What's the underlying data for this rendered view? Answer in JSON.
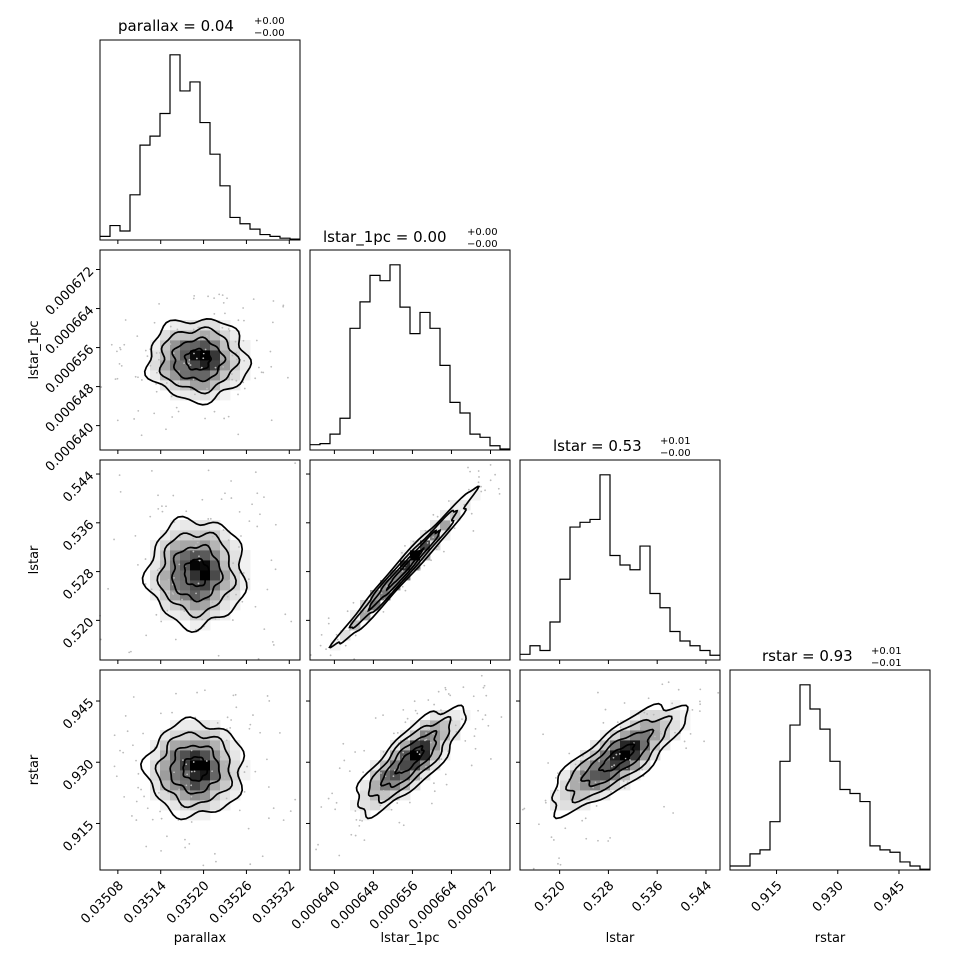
{
  "chart_data": {
    "type": "corner",
    "parameters": [
      "parallax",
      "lstar_1pc",
      "lstar",
      "rstar"
    ],
    "titles": [
      {
        "parameter": "parallax",
        "main": "parallax = 0.04",
        "upper": "+0.00",
        "lower": "−0.00"
      },
      {
        "parameter": "lstar_1pc",
        "main": "lstar_1pc = 0.00",
        "upper": "+0.00",
        "lower": "−0.00"
      },
      {
        "parameter": "lstar",
        "main": "lstar = 0.53",
        "upper": "+0.01",
        "lower": "−0.00"
      },
      {
        "parameter": "rstar",
        "main": "rstar = 0.93",
        "upper": "+0.01",
        "lower": "−0.01"
      }
    ],
    "axis_labels": {
      "x": [
        "parallax",
        "lstar_1pc",
        "lstar",
        "rstar"
      ],
      "y": [
        "lstar_1pc",
        "lstar",
        "rstar"
      ]
    },
    "ranges": {
      "parallax": [
        0.035055,
        0.035335
      ],
      "lstar_1pc": [
        0.000635,
        0.000676
      ],
      "lstar": [
        0.5135,
        0.5463
      ],
      "rstar": [
        0.9036,
        0.9526
      ]
    },
    "ticks": {
      "parallax": {
        "values": [
          0.03508,
          0.03514,
          0.0352,
          0.03526,
          0.03532
        ],
        "labels": [
          "0.03508",
          "0.03514",
          "0.03520",
          "0.03526",
          "0.03532"
        ]
      },
      "lstar_1pc": {
        "values": [
          0.00064,
          0.000648,
          0.000656,
          0.000664,
          0.000672
        ],
        "labels": [
          "0.000640",
          "0.000648",
          "0.000656",
          "0.000664",
          "0.000672"
        ]
      },
      "lstar": {
        "values": [
          0.52,
          0.528,
          0.536,
          0.544
        ],
        "labels": [
          "0.520",
          "0.528",
          "0.536",
          "0.544"
        ]
      },
      "rstar": {
        "values": [
          0.915,
          0.93,
          0.945
        ],
        "labels": [
          "0.915",
          "0.930",
          "0.945"
        ]
      }
    },
    "histograms": {
      "parallax": [
        4,
        16,
        10,
        50,
        105,
        115,
        140,
        205,
        165,
        175,
        130,
        95,
        60,
        25,
        18,
        12,
        6,
        4,
        2,
        1
      ],
      "lstar_1pc": [
        5,
        6,
        15,
        30,
        115,
        140,
        165,
        160,
        175,
        135,
        110,
        130,
        115,
        80,
        45,
        35,
        15,
        12,
        4,
        1
      ],
      "lstar": [
        6,
        15,
        10,
        40,
        85,
        140,
        145,
        148,
        195,
        110,
        100,
        95,
        120,
        70,
        55,
        30,
        20,
        15,
        10,
        5
      ],
      "rstar": [
        5,
        5,
        20,
        25,
        60,
        135,
        180,
        230,
        200,
        175,
        135,
        100,
        95,
        85,
        30,
        25,
        22,
        10,
        5,
        1
      ]
    },
    "pairs": [
      {
        "x": "parallax",
        "y": "lstar_1pc",
        "center": [
          0.035192,
          0.0006535
        ],
        "sigma": [
          3.5e-05,
          4.2e-06
        ],
        "rho": 0.0
      },
      {
        "x": "parallax",
        "y": "lstar",
        "center": [
          0.03519,
          0.5278
        ],
        "sigma": [
          3.4e-05,
          0.0044
        ],
        "rho": 0.0
      },
      {
        "x": "parallax",
        "y": "rstar",
        "center": [
          0.035188,
          0.9284
        ],
        "sigma": [
          3.4e-05,
          0.0058
        ],
        "rho": 0.0
      },
      {
        "x": "lstar_1pc",
        "y": "lstar",
        "center": [
          0.0006545,
          0.5285
        ],
        "sigma": [
          7.2e-06,
          0.0064
        ],
        "rho": 0.985
      },
      {
        "x": "lstar_1pc",
        "y": "rstar",
        "center": [
          0.0006555,
          0.9305
        ],
        "sigma": [
          5.5e-06,
          0.0065
        ],
        "rho": 0.8
      },
      {
        "x": "lstar",
        "y": "rstar",
        "center": [
          0.5295,
          0.931
        ],
        "sigma": [
          0.0055,
          0.0066
        ],
        "rho": 0.8
      }
    ],
    "grid": false,
    "colors": {
      "line": "#000000",
      "density": "#000000",
      "background": "#ffffff"
    }
  }
}
